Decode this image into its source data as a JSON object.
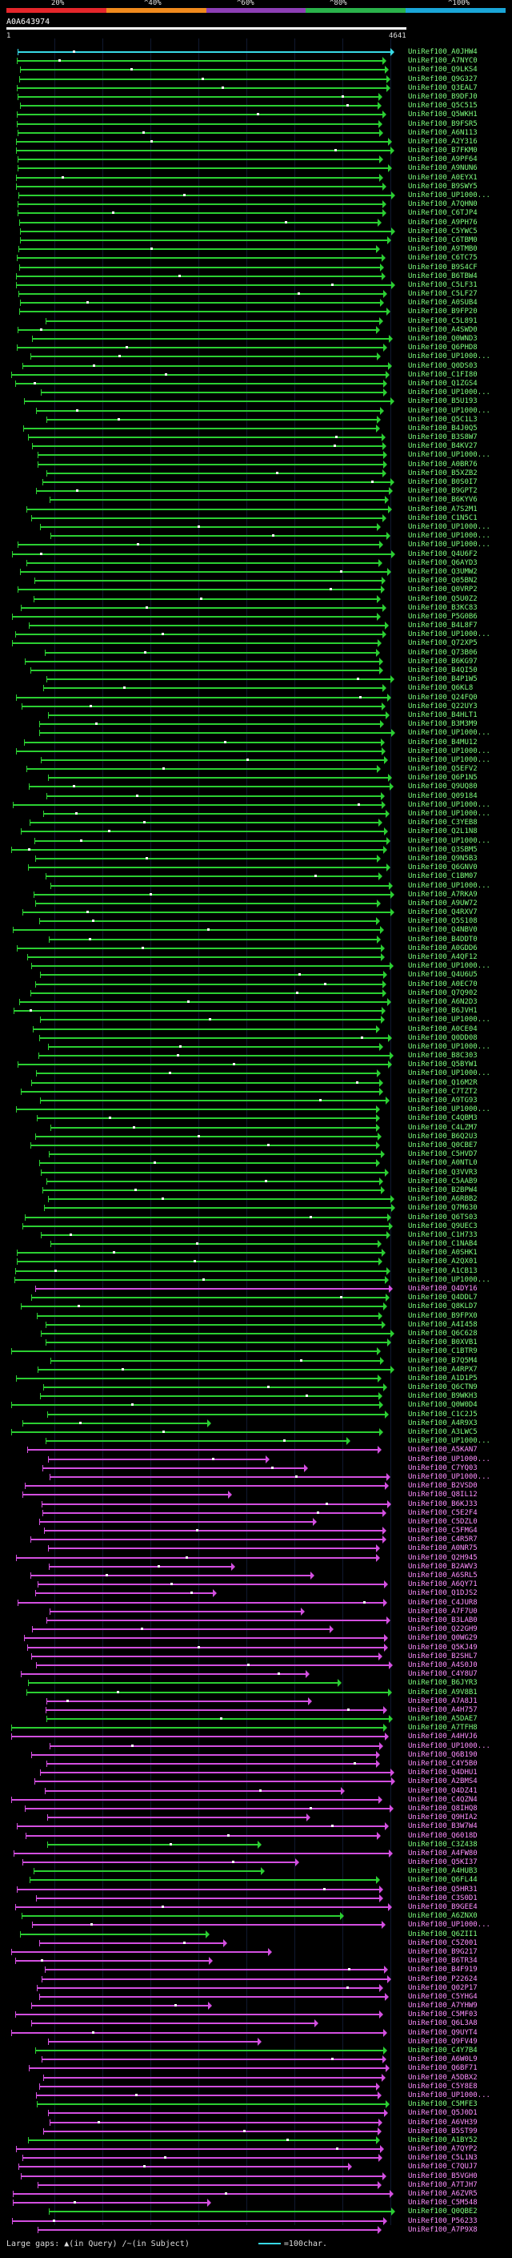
{
  "legend": {
    "colors": [
      "#e5262b",
      "#f08a1d",
      "#8d3fb5",
      "#2ab24b",
      "#1aa6d8"
    ],
    "ticks": [
      "20%",
      "^40%",
      "^60%",
      "^80%",
      "^100%"
    ]
  },
  "query": {
    "id": "A0A643974",
    "start": "1",
    "end": "4641"
  },
  "colors": {
    "green": "#2bcf32",
    "magenta": "#d34fe0",
    "cyan": "#38d9e6",
    "white": "#ffffff",
    "green_label": "#7fff7f",
    "magenta_label": "#ff8fff"
  },
  "hits": [
    "UniRef100_A0JHW4",
    "UniRef100_A7NYC0",
    "UniRef100_Q9LKS4",
    "UniRef100_Q9G327",
    "UniRef100_Q3EAL7",
    "UniRef100_B9DFJ0",
    "UniRef100_Q5C515",
    "UniRef100_Q5WKH1",
    "UniRef100_B9FSR5",
    "UniRef100_A6N113",
    "UniRef100_A2Y316",
    "UniRef100_B7FKM0",
    "UniRef100_A9PF64",
    "UniRef100_A9NUN6",
    "UniRef100_A0EYX1",
    "UniRef100_B9SWY5",
    "UniRef100_UP1000...",
    "UniRef100_A7QHN0",
    "UniRef100_C6TJP4",
    "UniRef100_A9PH76",
    "UniRef100_C5YWC5",
    "UniRef100_C6TBM0",
    "UniRef100_A9TMB0",
    "UniRef100_C6TC75",
    "UniRef100_B9S4CF",
    "UniRef100_B6TBW4",
    "UniRef100_C5LF31",
    "UniRef100_C5LF27",
    "UniRef100_A0SUB4",
    "UniRef100_B9FP20",
    "UniRef100_C5L891",
    "UniRef100_A4SWD0",
    "UniRef100_Q0WND3",
    "UniRef100_Q6PHD8",
    "UniRef100_UP1000...",
    "UniRef100_Q0DS03",
    "UniRef100_C1FI80",
    "UniRef100_Q1ZGS4",
    "UniRef100_UP1000...",
    "UniRef100_B5U193",
    "UniRef100_UP1000...",
    "UniRef100_Q5C1L3",
    "UniRef100_B4J0Q5",
    "UniRef100_B3S8W7",
    "UniRef100_B4KV27",
    "UniRef100_UP1000...",
    "UniRef100_A0BR76",
    "UniRef100_B5XZB2",
    "UniRef100_B0S0I7",
    "UniRef100_B9GPT2",
    "UniRef100_B6KYV6",
    "UniRef100_A7S2M1",
    "UniRef100_C1N5C1",
    "UniRef100_UP1000...",
    "UniRef100_UP1000...",
    "UniRef100_UP1000...",
    "UniRef100_Q4U6F2",
    "UniRef100_Q6AYD3",
    "UniRef100_Q3UMW2",
    "UniRef100_Q05BN2",
    "UniRef100_Q0VRP2",
    "UniRef100_Q5U0Z2",
    "UniRef100_B3KC83",
    "UniRef100_P5G0B6",
    "UniRef100_B4L8F7",
    "UniRef100_UP1000...",
    "UniRef100_Q72XP5",
    "UniRef100_Q73B06",
    "UniRef100_B6KG97",
    "UniRef100_B4QI50",
    "UniRef100_B4P1W5",
    "UniRef100_Q6KL8",
    "UniRef100_Q24FQ0",
    "UniRef100_Q22UY3",
    "UniRef100_B4HLT1",
    "UniRef100_B3M3M9",
    "UniRef100_UP1000...",
    "UniRef100_B4MU12",
    "UniRef100_UP1000...",
    "UniRef100_UP1000...",
    "UniRef100_Q5EFV2",
    "UniRef100_Q6P1N5",
    "UniRef100_Q9UQ80",
    "UniRef100_Q09184",
    "UniRef100_UP1000...",
    "UniRef100_UP1000...",
    "UniRef100_C3YEB8",
    "UniRef100_Q2L1N8",
    "UniRef100_UP1000...",
    "UniRef100_Q3SBM5",
    "UniRef100_Q9N5B3",
    "UniRef100_Q6GNV0",
    "UniRef100_C1BM07",
    "UniRef100_UP1000...",
    "UniRef100_A7RKA9",
    "UniRef100_A9UW72",
    "UniRef100_Q4RXV7",
    "UniRef100_Q5S108",
    "UniRef100_Q4NBV0",
    "UniRef100_B4DDT0",
    "UniRef100_A0GDD6",
    "UniRef100_A4QF12",
    "UniRef100_UP1000...",
    "UniRef100_Q4U6U5",
    "UniRef100_A0EC70",
    "UniRef100_Q7Q902",
    "UniRef100_A6N2D3",
    "UniRef100_B6JVH1",
    "UniRef100_UP1000...",
    "UniRef100_A0CE04",
    "UniRef100_Q0DD08",
    "UniRef100_UP1000...",
    "UniRef100_B8C303",
    "UniRef100_Q5BYW1",
    "UniRef100_UP1000...",
    "UniRef100_Q16M2R",
    "UniRef100_C7TZT2",
    "UniRef100_A9TG93",
    "UniRef100_UP1000...",
    "UniRef100_C4QBM3",
    "UniRef100_C4LZM7",
    "UniRef100_B6Q2U3",
    "UniRef100_Q0CBE7",
    "UniRef100_C5HVD7",
    "UniRef100_A0NTL0",
    "UniRef100_Q3VVR3",
    "UniRef100_C5AAB9",
    "UniRef100_B2BPW4",
    "UniRef100_A6RBB2",
    "UniRef100_Q7M630",
    "UniRef100_Q6TS03",
    "UniRef100_Q9UEC3",
    "UniRef100_C1H733",
    "UniRef100_C1NAB4",
    "UniRef100_A0SHK1",
    "UniRef100_A2QX01",
    "UniRef100_A1CB13",
    "UniRef100_UP1000...",
    "UniRef100_Q4DY16",
    "UniRef100_Q4DDL7",
    "UniRef100_Q8KLD7",
    "UniRef100_B9FPX0",
    "UniRef100_A4I458",
    "UniRef100_Q6C628",
    "UniRef100_B0XVB1",
    "UniRef100_C1BTR9",
    "UniRef100_B7Q5M4",
    "UniRef100_A4RPX7",
    "UniRef100_A1D1P5",
    "UniRef100_Q6CTN9",
    "UniRef100_B9WKH3",
    "UniRef100_Q0W0D4",
    "UniRef100_C1C2J5",
    "UniRef100_A4R9X3",
    "UniRef100_A3LWC5",
    "UniRef100_UP1000...",
    "UniRef100_A5KAN7",
    "UniRef100_UP1000...",
    "UniRef100_C7YQ03",
    "UniRef100_UP1000...",
    "UniRef100_B2VSD0",
    "UniRef100_Q8IL12",
    "UniRef100_B6KJ33",
    "UniRef100_C5E2F4",
    "UniRef100_C5DZL0",
    "UniRef100_C5FMG4",
    "UniRef100_C4R5R7",
    "UniRef100_A0NR75",
    "UniRef100_Q2H945",
    "UniRef100_B2AWV3",
    "UniRef100_A6SRL5",
    "UniRef100_A6QY71",
    "UniRef100_Q1DJS2",
    "UniRef100_C4JUR8",
    "UniRef100_A7F7U0",
    "UniRef100_B3LAB0",
    "UniRef100_Q22GH9",
    "UniRef100_Q0WG29",
    "UniRef100_Q5KJ49",
    "UniRef100_B2SHL7",
    "UniRef100_A4S0J0",
    "UniRef100_C4Y8U7",
    "UniRef100_B6JYR3",
    "UniRef100_A9V8B1",
    "UniRef100_A7A8J1",
    "UniRef100_A4H757",
    "UniRef100_A5DAE7",
    "UniRef100_A7TFH8",
    "UniRef100_A4HVJ6",
    "UniRef100_UP1000...",
    "UniRef100_Q6B190",
    "UniRef100_C4Y5B0",
    "UniRef100_Q4DHU1",
    "UniRef100_A2BMS4",
    "UniRef100_Q4DZ41",
    "UniRef100_C4QZN4",
    "UniRef100_Q8IHQ8",
    "UniRef100_Q9HIA2",
    "UniRef100_B3W7W4",
    "UniRef100_Q6018D",
    "UniRef100_C3Z438",
    "UniRef100_A4FW80",
    "UniRef100_Q5KI37",
    "UniRef100_A4HUB3",
    "UniRef100_Q6FL44",
    "UniRef100_Q5HR31",
    "UniRef100_C3S0D1",
    "UniRef100_B9GEE4",
    "UniRef100_A6ZNX0",
    "UniRef100_UP1000...",
    "UniRef100_Q6ZII1",
    "UniRef100_C5Z001",
    "UniRef100_B9G217",
    "UniRef100_B6TR34",
    "UniRef100_B4F919",
    "UniRef100_P22624",
    "UniRef100_Q02P17",
    "UniRef100_C5YHG4",
    "UniRef100_A7YHW9",
    "UniRef100_C5MF03",
    "UniRef100_Q6L3A8",
    "UniRef100_Q9UYT4",
    "UniRef100_Q9FV49",
    "UniRef100_C4Y7B4",
    "UniRef100_A6W0L9",
    "UniRef100_Q6BF71",
    "UniRef100_A5DBX2",
    "UniRef100_C5Y8E8",
    "UniRef100_UP1000...",
    "UniRef100_C5MFE3",
    "UniRef100_Q5J0D1",
    "UniRef100_A6VH39",
    "UniRef100_B5ST99",
    "UniRef100_A1BY52",
    "UniRef100_A7QYP2",
    "UniRef100_C5L1N3",
    "UniRef100_C7QUJ7",
    "UniRef100_B5VGH0",
    "UniRef100_A7TJH7",
    "UniRef100_A6ZVR5",
    "UniRef100_C5M548",
    "UniRef100_Q0QBE2",
    "UniRef100_P56233",
    "UniRef100_A7P9X8"
  ],
  "footer": {
    "label": "Large gaps:",
    "legend1": "(in Query)",
    "legend2": "(in Subject)",
    "scale": "=100char."
  }
}
